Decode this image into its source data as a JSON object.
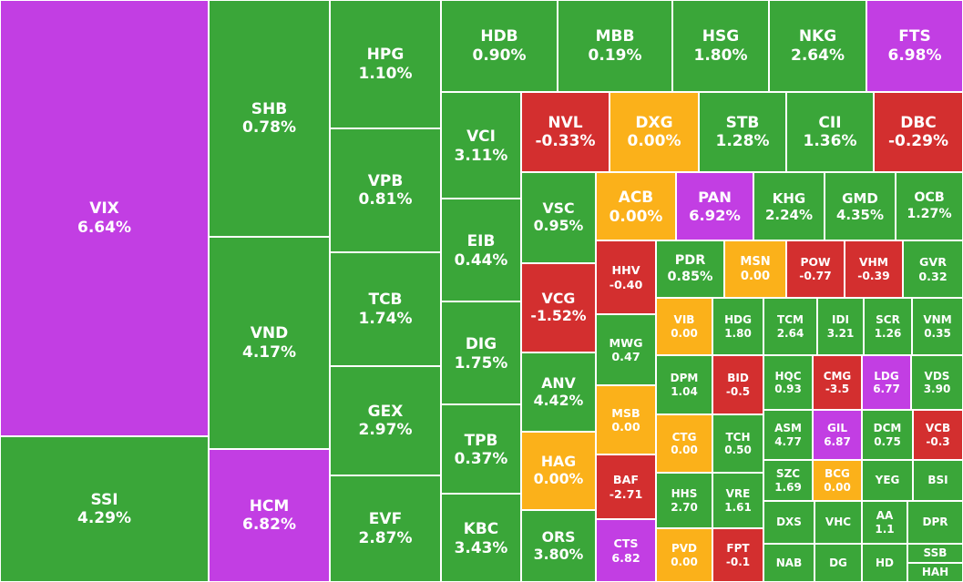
{
  "colors": {
    "up": "#3aa639",
    "down": "#d32f2f",
    "ref": "#fbb11a",
    "ceiling": "#c23ee3"
  },
  "chart_data": {
    "type": "treemap",
    "tiles": [
      {
        "name": "VIX",
        "value": "6.64%",
        "status": "ceiling"
      },
      {
        "name": "SSI",
        "value": "4.29%",
        "status": "up"
      },
      {
        "name": "SHB",
        "value": "0.78%",
        "status": "up"
      },
      {
        "name": "VND",
        "value": "4.17%",
        "status": "up"
      },
      {
        "name": "HCM",
        "value": "6.82%",
        "status": "ceiling"
      },
      {
        "name": "HPG",
        "value": "1.10%",
        "status": "up"
      },
      {
        "name": "VPB",
        "value": "0.81%",
        "status": "up"
      },
      {
        "name": "TCB",
        "value": "1.74%",
        "status": "up"
      },
      {
        "name": "GEX",
        "value": "2.97%",
        "status": "up"
      },
      {
        "name": "EVF",
        "value": "2.87%",
        "status": "up"
      },
      {
        "name": "HDB",
        "value": "0.90%",
        "status": "up"
      },
      {
        "name": "MBB",
        "value": "0.19%",
        "status": "up"
      },
      {
        "name": "HSG",
        "value": "1.80%",
        "status": "up"
      },
      {
        "name": "NKG",
        "value": "2.64%",
        "status": "up"
      },
      {
        "name": "FTS",
        "value": "6.98%",
        "status": "ceiling"
      },
      {
        "name": "VCI",
        "value": "3.11%",
        "status": "up"
      },
      {
        "name": "EIB",
        "value": "0.44%",
        "status": "up"
      },
      {
        "name": "DIG",
        "value": "1.75%",
        "status": "up"
      },
      {
        "name": "TPB",
        "value": "0.37%",
        "status": "up"
      },
      {
        "name": "KBC",
        "value": "3.43%",
        "status": "up"
      },
      {
        "name": "NVL",
        "value": "-0.33%",
        "status": "down"
      },
      {
        "name": "DXG",
        "value": "0.00%",
        "status": "ref"
      },
      {
        "name": "STB",
        "value": "1.28%",
        "status": "up"
      },
      {
        "name": "CII",
        "value": "1.36%",
        "status": "up"
      },
      {
        "name": "DBC",
        "value": "-0.29%",
        "status": "down"
      },
      {
        "name": "VSC",
        "value": "0.95%",
        "status": "up"
      },
      {
        "name": "VCG",
        "value": "-1.52%",
        "status": "down"
      },
      {
        "name": "ANV",
        "value": "4.42%",
        "status": "up"
      },
      {
        "name": "HAG",
        "value": "0.00%",
        "status": "ref"
      },
      {
        "name": "ORS",
        "value": "3.80%",
        "status": "up"
      },
      {
        "name": "ACB",
        "value": "0.00%",
        "status": "ref"
      },
      {
        "name": "PAN",
        "value": "6.92%",
        "status": "ceiling"
      },
      {
        "name": "KHG",
        "value": "2.24%",
        "status": "up"
      },
      {
        "name": "GMD",
        "value": "4.35%",
        "status": "up"
      },
      {
        "name": "OCB",
        "value": "1.27%",
        "status": "up"
      },
      {
        "name": "HHV",
        "value": "-0.40",
        "status": "down"
      },
      {
        "name": "MWG",
        "value": "0.47",
        "status": "up"
      },
      {
        "name": "MSB",
        "value": "0.00",
        "status": "ref"
      },
      {
        "name": "BAF",
        "value": "-2.71",
        "status": "down"
      },
      {
        "name": "CTS",
        "value": "6.82",
        "status": "ceiling"
      },
      {
        "name": "PDR",
        "value": "0.85%",
        "status": "up"
      },
      {
        "name": "MSN",
        "value": "0.00",
        "status": "ref"
      },
      {
        "name": "POW",
        "value": "-0.77",
        "status": "down"
      },
      {
        "name": "VHM",
        "value": "-0.39",
        "status": "down"
      },
      {
        "name": "GVR",
        "value": "0.32",
        "status": "up"
      },
      {
        "name": "VIB",
        "value": "0.00",
        "status": "ref"
      },
      {
        "name": "DPM",
        "value": "1.04",
        "status": "up"
      },
      {
        "name": "CTG",
        "value": "0.00",
        "status": "ref"
      },
      {
        "name": "HHS",
        "value": "2.70",
        "status": "up"
      },
      {
        "name": "PVD",
        "value": "0.00",
        "status": "ref"
      },
      {
        "name": "HDG",
        "value": "1.80",
        "status": "up"
      },
      {
        "name": "BID",
        "value": "-0.5",
        "status": "down"
      },
      {
        "name": "TCH",
        "value": "0.50",
        "status": "up"
      },
      {
        "name": "VRE",
        "value": "1.61",
        "status": "up"
      },
      {
        "name": "FPT",
        "value": "-0.1",
        "status": "down"
      },
      {
        "name": "TCM",
        "value": "2.64",
        "status": "up"
      },
      {
        "name": "IDI",
        "value": "3.21",
        "status": "up"
      },
      {
        "name": "SCR",
        "value": "1.26",
        "status": "up"
      },
      {
        "name": "VNM",
        "value": "0.35",
        "status": "up"
      },
      {
        "name": "HQC",
        "value": "0.93",
        "status": "up"
      },
      {
        "name": "CMG",
        "value": "-3.5",
        "status": "down"
      },
      {
        "name": "LDG",
        "value": "6.77",
        "status": "ceiling"
      },
      {
        "name": "VDS",
        "value": "3.90",
        "status": "up"
      },
      {
        "name": "ASM",
        "value": "4.77",
        "status": "up"
      },
      {
        "name": "GIL",
        "value": "6.87",
        "status": "ceiling"
      },
      {
        "name": "DCM",
        "value": "0.75",
        "status": "up"
      },
      {
        "name": "VCB",
        "value": "-0.3",
        "status": "down"
      },
      {
        "name": "SZC",
        "value": "1.69",
        "status": "up"
      },
      {
        "name": "BCG",
        "value": "0.00",
        "status": "ref"
      },
      {
        "name": "YEG",
        "value": "",
        "status": "up"
      },
      {
        "name": "BSI",
        "value": "",
        "status": "up"
      },
      {
        "name": "DXS",
        "value": "",
        "status": "up"
      },
      {
        "name": "VHC",
        "value": "",
        "status": "up"
      },
      {
        "name": "AA",
        "value": "1.1",
        "status": "up"
      },
      {
        "name": "DPR",
        "value": "",
        "status": "up"
      },
      {
        "name": "NAB",
        "value": "",
        "status": "up"
      },
      {
        "name": "DG",
        "value": "",
        "status": "up"
      },
      {
        "name": "HD",
        "value": "",
        "status": "up"
      },
      {
        "name": "SSB",
        "value": "",
        "status": "up"
      },
      {
        "name": "HAH",
        "value": "",
        "status": "up"
      }
    ]
  }
}
